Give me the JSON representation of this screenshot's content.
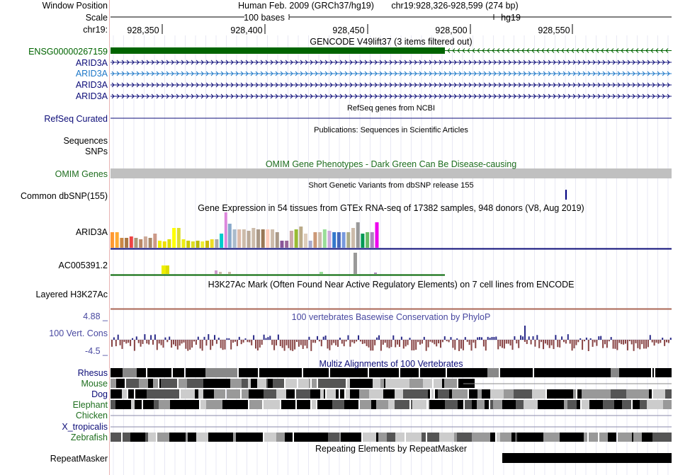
{
  "header": {
    "window_position_label": "Window Position",
    "scale_label": "Scale",
    "chrom_label": "chr19:",
    "assembly_text": "Human Feb. 2009 (GRCh37/hg19)",
    "position_text": "chr19:928,326-928,599 (274 bp)",
    "scale_text": "100 bases",
    "scale_assembly": "hg19",
    "ruler_ticks": [
      "928,350",
      "928,400",
      "928,450",
      "928,500",
      "928,550"
    ]
  },
  "tracks": {
    "gencode": {
      "title": "GENCODE V49lift37 (3 items filtered out)",
      "items": [
        "ENSG00000267159",
        "ARID3A",
        "ARID3A",
        "ARID3A",
        "ARID3A"
      ]
    },
    "refseq": {
      "title": "RefSeq genes from NCBI",
      "label": "RefSeq Curated"
    },
    "publications": {
      "title": "Publications: Sequences in Scientific Articles",
      "label1": "Sequences",
      "label2": "SNPs"
    },
    "omim": {
      "title": "OMIM Gene Phenotypes - Dark Green Can Be Disease-causing",
      "label": "OMIM Genes"
    },
    "dbsnp": {
      "title": "Short Genetic Variants from dbSNP release 155",
      "label": "Common dbSNP(155)"
    },
    "gtex": {
      "title": "Gene Expression in 54 tissues from GTEx RNA-seq of 17382 samples, 948 donors (V8, Aug 2019)",
      "gene1": "ARID3A",
      "gene2": "AC005391.2"
    },
    "h3k27ac": {
      "title": "H3K27Ac Mark (Often Found Near Active Regulatory Elements) on 7 cell lines from ENCODE",
      "label": "Layered H3K27Ac"
    },
    "phylop": {
      "title": "100 vertebrates Basewise Conservation by PhyloP",
      "label": "100 Vert. Cons",
      "max": "4.88 _",
      "min": "-4.5 _"
    },
    "multiz": {
      "title": "Multiz Alignments of 100 Vertebrates",
      "species": [
        "Rhesus",
        "Mouse",
        "Dog",
        "Elephant",
        "Chicken",
        "X_tropicalis",
        "Zebrafish"
      ]
    },
    "repeatmasker": {
      "title": "Repeating Elements by RepeatMasker",
      "label": "RepeatMasker"
    }
  },
  "colors": {
    "gencode_green": "#006400",
    "arid3a_blue": "#0c0c78",
    "arid3a_light": "#1e78c8",
    "refseq_blue": "#0c0c78",
    "omim_green": "#1e6e1e",
    "conservation_label": "#4848a0",
    "grid": "#e8e8f4"
  }
}
